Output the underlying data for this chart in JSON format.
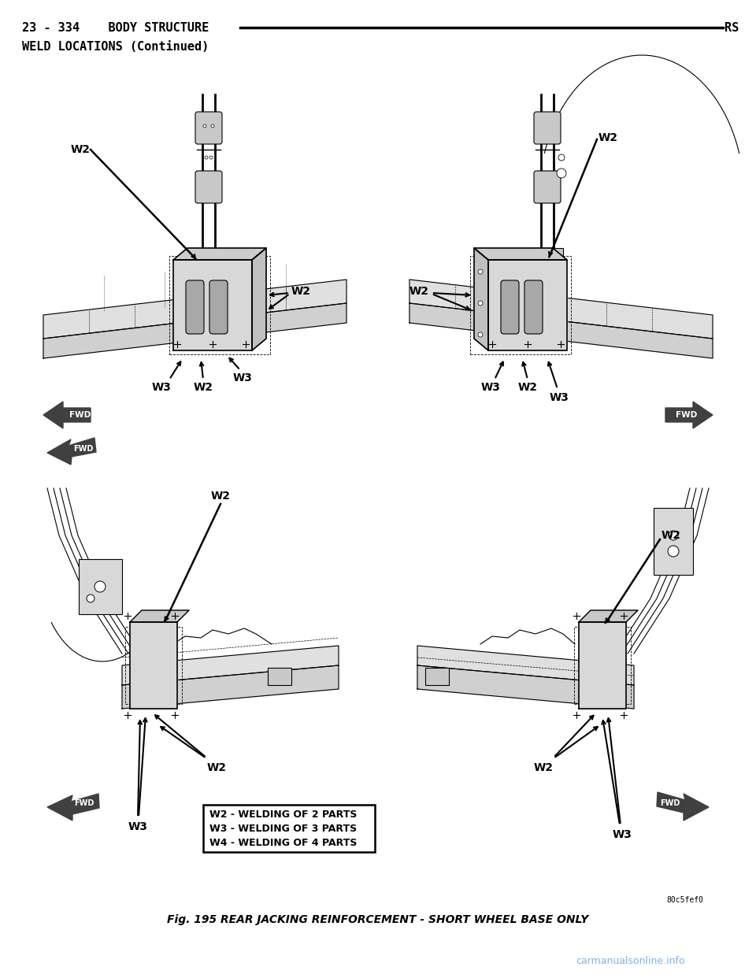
{
  "page_header_left": "23 - 334    BODY STRUCTURE",
  "page_header_right": "RS",
  "section_title": "WELD LOCATIONS (Continued)",
  "figure_caption": "Fig. 195 REAR JACKING REINFORCEMENT - SHORT WHEEL BASE ONLY",
  "watermark": "carmanualsonline.info",
  "figure_code": "80c5fef0",
  "legend_lines": [
    "W2 - WELDING OF 2 PARTS",
    "W3 - WELDING OF 3 PARTS",
    "W4 - WELDING OF 4 PARTS"
  ],
  "bg_color": "#ffffff",
  "text_color": "#000000",
  "header_line_color": "#000000",
  "font_size_header": 11,
  "font_size_section": 11,
  "font_size_caption": 10,
  "font_size_watermark": 9,
  "font_size_legend": 9,
  "font_size_wlabel": 10
}
